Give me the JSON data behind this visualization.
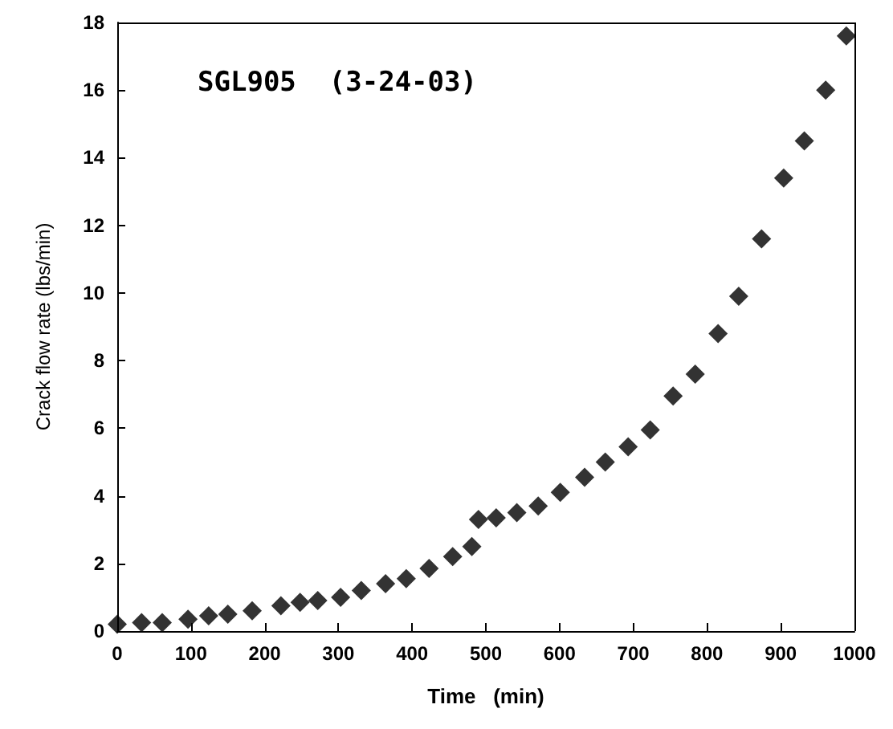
{
  "chart_data": {
    "type": "scatter",
    "title": "SGL905  (3-24-03)",
    "xlabel": "Time   (min)",
    "ylabel": "Crack flow rate (lbs/min)",
    "x": [
      0,
      33,
      61,
      96,
      124,
      150,
      183,
      222,
      248,
      272,
      303,
      331,
      364,
      392,
      423,
      455,
      481,
      490,
      514,
      542,
      571,
      601,
      634,
      662,
      693,
      723,
      754,
      784,
      815,
      843,
      874,
      904,
      932,
      961,
      989
    ],
    "values": [
      0.2,
      0.25,
      0.25,
      0.35,
      0.45,
      0.5,
      0.6,
      0.75,
      0.85,
      0.9,
      1.0,
      1.2,
      1.4,
      1.55,
      1.85,
      2.2,
      2.5,
      3.3,
      3.35,
      3.5,
      3.7,
      4.1,
      4.55,
      5.0,
      5.45,
      5.95,
      6.95,
      7.6,
      8.8,
      9.9,
      11.6,
      13.4,
      14.5,
      16.0,
      17.6
    ],
    "color": "#000000",
    "marker": "diamond",
    "grid": false,
    "xlim": [
      0,
      1000
    ],
    "xticks": [
      0,
      100,
      200,
      300,
      400,
      500,
      600,
      700,
      800,
      900,
      1000
    ],
    "ylim": [
      0,
      18
    ],
    "yticks": [
      0,
      2,
      4,
      6,
      8,
      10,
      12,
      14,
      16,
      18
    ]
  }
}
